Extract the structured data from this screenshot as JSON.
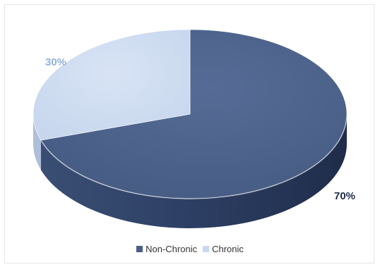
{
  "chart_data": {
    "type": "pie",
    "title": "",
    "categories": [
      "Non-Chronic",
      "Chronic"
    ],
    "values": [
      70,
      30
    ],
    "data_labels": [
      "70%",
      "30%"
    ],
    "colors": [
      "#4a5f87",
      "#c9d8ef"
    ],
    "label_colors": [
      "#1f2d4a",
      "#8fb1de"
    ],
    "legend_position": "bottom",
    "style": "3d-pie"
  }
}
